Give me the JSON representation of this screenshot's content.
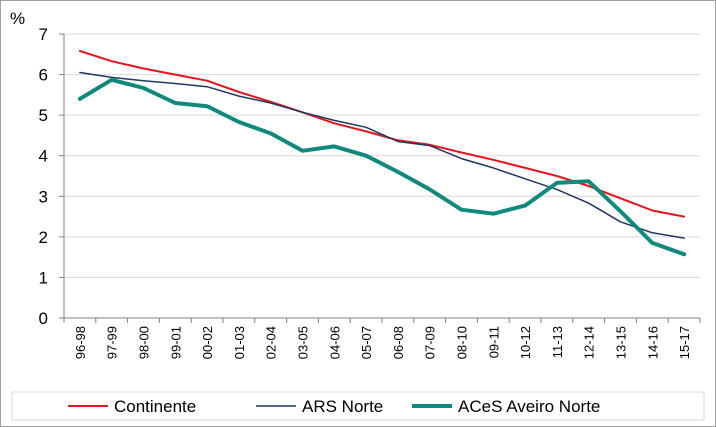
{
  "chart_data": {
    "type": "line",
    "ylabel": "%",
    "ylim": [
      0,
      7
    ],
    "yticks": [
      "0",
      "1",
      "2",
      "3",
      "4",
      "5",
      "6",
      "7"
    ],
    "categories": [
      "96-98",
      "97-99",
      "98-00",
      "99-01",
      "00-02",
      "01-03",
      "02-04",
      "03-05",
      "04-06",
      "05-07",
      "06-08",
      "07-09",
      "08-10",
      "09-11",
      "10-12",
      "11-13",
      "12-14",
      "13-15",
      "14-16",
      "15-17"
    ],
    "grid": true,
    "legend_position": "bottom",
    "series": [
      {
        "name": "Continente",
        "color": "#e8141c",
        "values": [
          6.58,
          6.33,
          6.15,
          6.0,
          5.85,
          5.57,
          5.33,
          5.07,
          4.8,
          4.6,
          4.38,
          4.27,
          4.08,
          3.9,
          3.7,
          3.5,
          3.25,
          2.95,
          2.65,
          2.5
        ]
      },
      {
        "name": "ARS Norte",
        "color": "#1f3864",
        "values": [
          6.05,
          5.93,
          5.85,
          5.78,
          5.7,
          5.47,
          5.3,
          5.07,
          4.87,
          4.7,
          4.35,
          4.25,
          3.93,
          3.7,
          3.43,
          3.17,
          2.83,
          2.37,
          2.1,
          1.97
        ]
      },
      {
        "name": "ACeS Aveiro Norte",
        "color": "#0e8a7c",
        "values": [
          5.4,
          5.87,
          5.67,
          5.3,
          5.22,
          4.83,
          4.55,
          4.12,
          4.23,
          4.0,
          3.6,
          3.17,
          2.67,
          2.57,
          2.77,
          3.33,
          3.37,
          2.63,
          1.85,
          1.57
        ]
      }
    ]
  }
}
